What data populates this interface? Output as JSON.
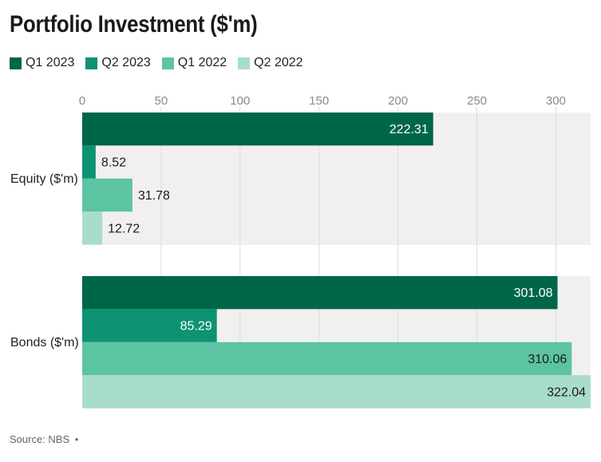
{
  "chart_data": {
    "type": "bar",
    "orientation": "horizontal",
    "title": "Portfolio Investment ($'m)",
    "categories": [
      "Equity ($'m)",
      "Bonds ($'m)"
    ],
    "series": [
      {
        "name": "Q1 2023",
        "color": "#00664a",
        "values": [
          222.31,
          301.08
        ]
      },
      {
        "name": "Q2 2023",
        "color": "#0d9273",
        "values": [
          8.52,
          85.29
        ]
      },
      {
        "name": "Q1 2022",
        "color": "#5cc3a3",
        "values": [
          31.78,
          310.06
        ]
      },
      {
        "name": "Q2 2022",
        "color": "#a8dccb",
        "values": [
          12.72,
          322.04
        ]
      }
    ],
    "value_labels": [
      [
        "222.31",
        "301.08"
      ],
      [
        "8.52",
        "85.29"
      ],
      [
        "31.78",
        "310.06"
      ],
      [
        "12.72",
        "322.04"
      ]
    ],
    "xticks": [
      "0",
      "50",
      "100",
      "150",
      "200",
      "250",
      "300"
    ],
    "xtick_values": [
      0,
      50,
      100,
      150,
      200,
      250,
      300
    ],
    "xlim": [
      0,
      322.04
    ],
    "xaxis_position": "top",
    "grid": true,
    "legend_position": "top-left",
    "background_color": "#f2f0ef"
  },
  "footer": {
    "source": "Source: NBS",
    "separator": "•"
  }
}
